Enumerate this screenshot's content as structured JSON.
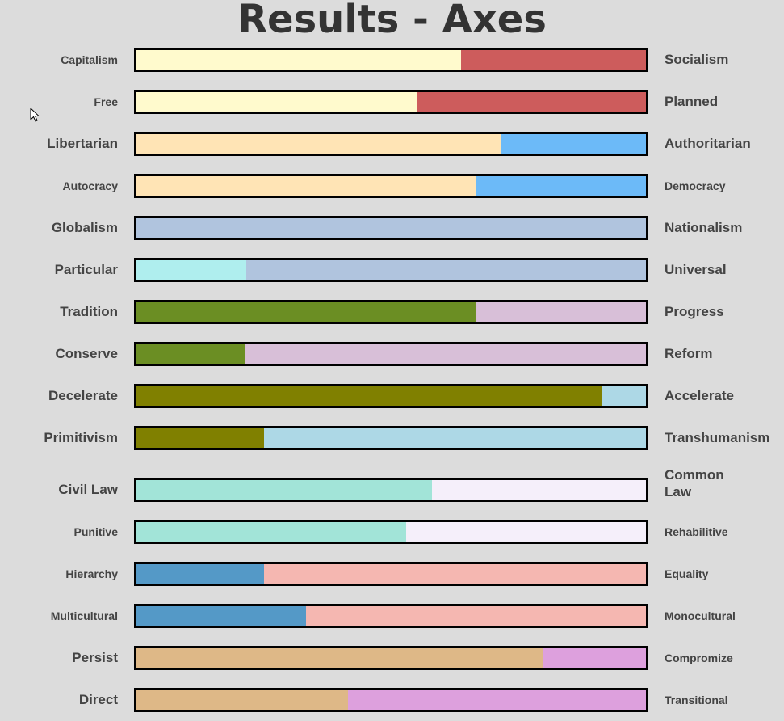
{
  "chart_data": {
    "type": "bar",
    "title": "Results - Axes",
    "orientation": "horizontal-stacked-100",
    "axes": [
      {
        "left": "Capitalism",
        "right": "Socialism",
        "left_value": 63.7,
        "left_color": "#fffacd",
        "right_color": "#cd5c5c"
      },
      {
        "left": "Free",
        "right": "Planned",
        "left_value": 55.0,
        "left_color": "#fffacd",
        "right_color": "#cd5c5c"
      },
      {
        "left": "Libertarian",
        "right": "Authoritarian",
        "left_value": 71.5,
        "left_color": "#ffe4b5",
        "right_color": "#6cbaf8"
      },
      {
        "left": "Autocracy",
        "right": "Democracy",
        "left_value": 66.7,
        "left_color": "#ffe4b5",
        "right_color": "#6cbaf8"
      },
      {
        "left": "Globalism",
        "right": "Nationalism",
        "left_value": 0,
        "left_color": "#afeeee",
        "right_color": "#b0c4de"
      },
      {
        "left": "Particular",
        "right": "Universal",
        "left_value": 21.6,
        "left_color": "#afeeee",
        "right_color": "#b0c4de"
      },
      {
        "left": "Tradition",
        "right": "Progress",
        "left_value": 66.7,
        "left_color": "#6b8e23",
        "right_color": "#d8bfd8"
      },
      {
        "left": "Conserve",
        "right": "Reform",
        "left_value": 21.2,
        "left_color": "#6b8e23",
        "right_color": "#d8bfd8"
      },
      {
        "left": "Decelerate",
        "right": "Accelerate",
        "left_value": 91.3,
        "left_color": "#808000",
        "right_color": "#add8e6"
      },
      {
        "left": "Primitivism",
        "right": "Transhumanism",
        "left_value": 25.0,
        "left_color": "#808000",
        "right_color": "#add8e6"
      },
      {
        "left": "Civil Law",
        "right": "Common Law",
        "left_value": 58.0,
        "left_color": "#a2e4d8",
        "right_color": "#f5effa"
      },
      {
        "left": "Punitive",
        "right": "Rehabilitive",
        "left_value": 52.9,
        "left_color": "#a2e4d8",
        "right_color": "#f5effa"
      },
      {
        "left": "Hierarchy",
        "right": "Equality",
        "left_value": 25.0,
        "left_color": "#5499c7",
        "right_color": "#f5b7b1"
      },
      {
        "left": "Multicultural",
        "right": "Monocultural",
        "left_value": 33.3,
        "left_color": "#5499c7",
        "right_color": "#f5b7b1"
      },
      {
        "left": "Persist",
        "right": "Compromize",
        "left_value": 79.9,
        "left_color": "#deb887",
        "right_color": "#dda0dd"
      },
      {
        "left": "Direct",
        "right": "Transitional",
        "left_value": 41.5,
        "left_color": "#deb887",
        "right_color": "#dda0dd"
      }
    ],
    "xlim": [
      0,
      100
    ]
  }
}
